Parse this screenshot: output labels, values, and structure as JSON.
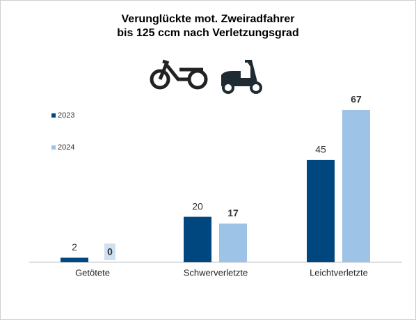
{
  "chart_data": {
    "type": "bar",
    "title": [
      "Verunglückte mot. Zweiradfahrer",
      "bis 125 ccm nach Verletzungsgrad"
    ],
    "categories": [
      "Getötete",
      "Schwerverletzte",
      "Leichtverletzte"
    ],
    "series": [
      {
        "name": "2023",
        "color": "#00467f",
        "values": [
          2,
          20,
          45
        ]
      },
      {
        "name": "2024",
        "color": "#9dc3e6",
        "values": [
          0,
          17,
          67
        ]
      }
    ],
    "legend": "top-left"
  }
}
